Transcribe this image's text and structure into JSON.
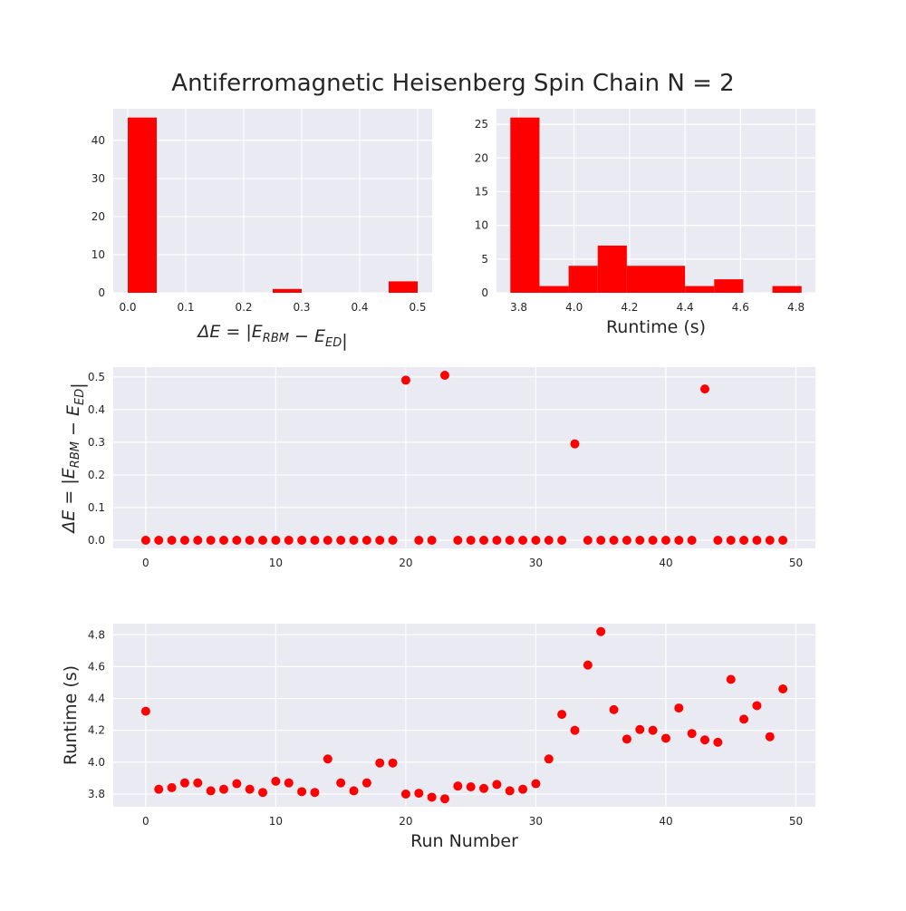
{
  "figure": {
    "title": "Antiferromagnetic Heisenberg Spin Chain N = 2",
    "mark_color": "#ff0000",
    "panel_color": "#eaeaf2",
    "grid_color": "#ffffff"
  },
  "chart_data": [
    {
      "type": "bar",
      "kind": "histogram",
      "xlabel": {
        "prefix": "ΔE = |E",
        "sub1": "RBM",
        "mid": " − E",
        "sub2": "ED",
        "suffix": "|"
      },
      "ylabel": "",
      "bins": [
        {
          "start": 0.0,
          "end": 0.05,
          "count": 46
        },
        {
          "start": 0.25,
          "end": 0.3,
          "count": 1
        },
        {
          "start": 0.45,
          "end": 0.5,
          "count": 3
        }
      ],
      "xlim": [
        -0.025,
        0.525
      ],
      "ylim": [
        0,
        48.3
      ],
      "xticks": [
        "0.0",
        "0.1",
        "0.2",
        "0.3",
        "0.4",
        "0.5"
      ],
      "yticks": [
        "0",
        "10",
        "20",
        "30",
        "40"
      ],
      "grid": true
    },
    {
      "type": "bar",
      "kind": "histogram",
      "xlabel": "Runtime (s)",
      "ylabel": "",
      "bins": [
        {
          "start": 3.77,
          "end": 3.875,
          "count": 26
        },
        {
          "start": 3.875,
          "end": 3.98,
          "count": 1
        },
        {
          "start": 3.98,
          "end": 4.085,
          "count": 4
        },
        {
          "start": 4.085,
          "end": 4.19,
          "count": 7
        },
        {
          "start": 4.19,
          "end": 4.295,
          "count": 4
        },
        {
          "start": 4.295,
          "end": 4.4,
          "count": 4
        },
        {
          "start": 4.4,
          "end": 4.505,
          "count": 1
        },
        {
          "start": 4.505,
          "end": 4.61,
          "count": 2
        },
        {
          "start": 4.715,
          "end": 4.82,
          "count": 1
        }
      ],
      "xlim": [
        3.72,
        4.87
      ],
      "ylim": [
        0,
        27.3
      ],
      "xticks": [
        "3.8",
        "4.0",
        "4.2",
        "4.4",
        "4.6",
        "4.8"
      ],
      "yticks": [
        "0",
        "5",
        "10",
        "15",
        "20",
        "25"
      ],
      "grid": true
    },
    {
      "type": "scatter",
      "xlabel": "",
      "ylabel": {
        "prefix": "ΔE = |E",
        "sub1": "RBM",
        "mid": " − E",
        "sub2": "ED",
        "suffix": "|"
      },
      "x": [
        0,
        1,
        2,
        3,
        4,
        5,
        6,
        7,
        8,
        9,
        10,
        11,
        12,
        13,
        14,
        15,
        16,
        17,
        18,
        19,
        20,
        21,
        22,
        23,
        24,
        25,
        26,
        27,
        28,
        29,
        30,
        31,
        32,
        33,
        34,
        35,
        36,
        37,
        38,
        39,
        40,
        41,
        42,
        43,
        44,
        45,
        46,
        47,
        48,
        49
      ],
      "y": [
        0,
        0,
        0,
        0,
        0,
        0,
        0,
        0,
        0,
        0,
        0,
        0,
        0,
        0,
        0,
        0,
        0,
        0,
        0,
        0,
        0.49,
        0,
        0,
        0.505,
        0,
        0,
        0,
        0,
        0,
        0,
        0,
        0,
        0,
        0.295,
        0,
        0,
        0,
        0,
        0,
        0,
        0,
        0,
        0,
        0.463,
        0,
        0,
        0,
        0,
        0,
        0
      ],
      "xlim": [
        -2.5,
        51.5
      ],
      "ylim": [
        -0.025,
        0.53
      ],
      "xticks": [
        "0",
        "10",
        "20",
        "30",
        "40",
        "50"
      ],
      "yticks": [
        "0.0",
        "0.1",
        "0.2",
        "0.3",
        "0.4",
        "0.5"
      ],
      "grid": true
    },
    {
      "type": "scatter",
      "xlabel": "Run Number",
      "ylabel": "Runtime (s)",
      "x": [
        0,
        1,
        2,
        3,
        4,
        5,
        6,
        7,
        8,
        9,
        10,
        11,
        12,
        13,
        14,
        15,
        16,
        17,
        18,
        19,
        20,
        21,
        22,
        23,
        24,
        25,
        26,
        27,
        28,
        29,
        30,
        31,
        32,
        33,
        34,
        35,
        36,
        37,
        38,
        39,
        40,
        41,
        42,
        43,
        44,
        45,
        46,
        47,
        48,
        49
      ],
      "y": [
        4.32,
        3.83,
        3.84,
        3.87,
        3.87,
        3.82,
        3.83,
        3.865,
        3.83,
        3.81,
        3.88,
        3.87,
        3.815,
        3.81,
        4.02,
        3.87,
        3.82,
        3.87,
        3.995,
        3.995,
        3.8,
        3.805,
        3.78,
        3.77,
        3.85,
        3.845,
        3.835,
        3.86,
        3.82,
        3.83,
        3.865,
        4.02,
        4.3,
        4.2,
        4.61,
        4.82,
        4.33,
        4.145,
        4.205,
        4.2,
        4.15,
        4.34,
        4.18,
        4.14,
        4.125,
        4.52,
        4.27,
        4.355,
        4.16,
        4.46
      ],
      "xlim": [
        -2.5,
        51.5
      ],
      "ylim": [
        3.72,
        4.87
      ],
      "xticks": [
        "0",
        "10",
        "20",
        "30",
        "40",
        "50"
      ],
      "yticks": [
        "3.8",
        "4.0",
        "4.2",
        "4.4",
        "4.6",
        "4.8"
      ],
      "grid": true
    }
  ]
}
